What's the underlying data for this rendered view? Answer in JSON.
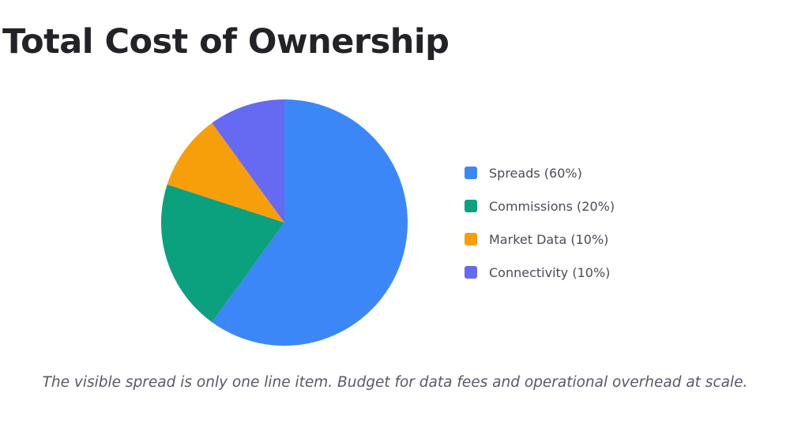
{
  "slide": {
    "title": "Total Cost of Ownership",
    "caption": "The visible spread is only one line item. Budget for data fees and operational overhead at scale."
  },
  "chart_data": {
    "type": "pie",
    "title": "",
    "legend_position": "right",
    "slices": [
      {
        "label": "Spreads",
        "legend_text": "Spreads (60%)",
        "value": 60,
        "color": "#3b87f7"
      },
      {
        "label": "Commissions",
        "legend_text": "Commissions (20%)",
        "value": 20,
        "color": "#0ba07e"
      },
      {
        "label": "Market Data",
        "legend_text": "Market Data (10%)",
        "value": 10,
        "color": "#f79f0b"
      },
      {
        "label": "Connectivity",
        "legend_text": "Connectivity (10%)",
        "value": 10,
        "color": "#6669f2"
      }
    ]
  }
}
